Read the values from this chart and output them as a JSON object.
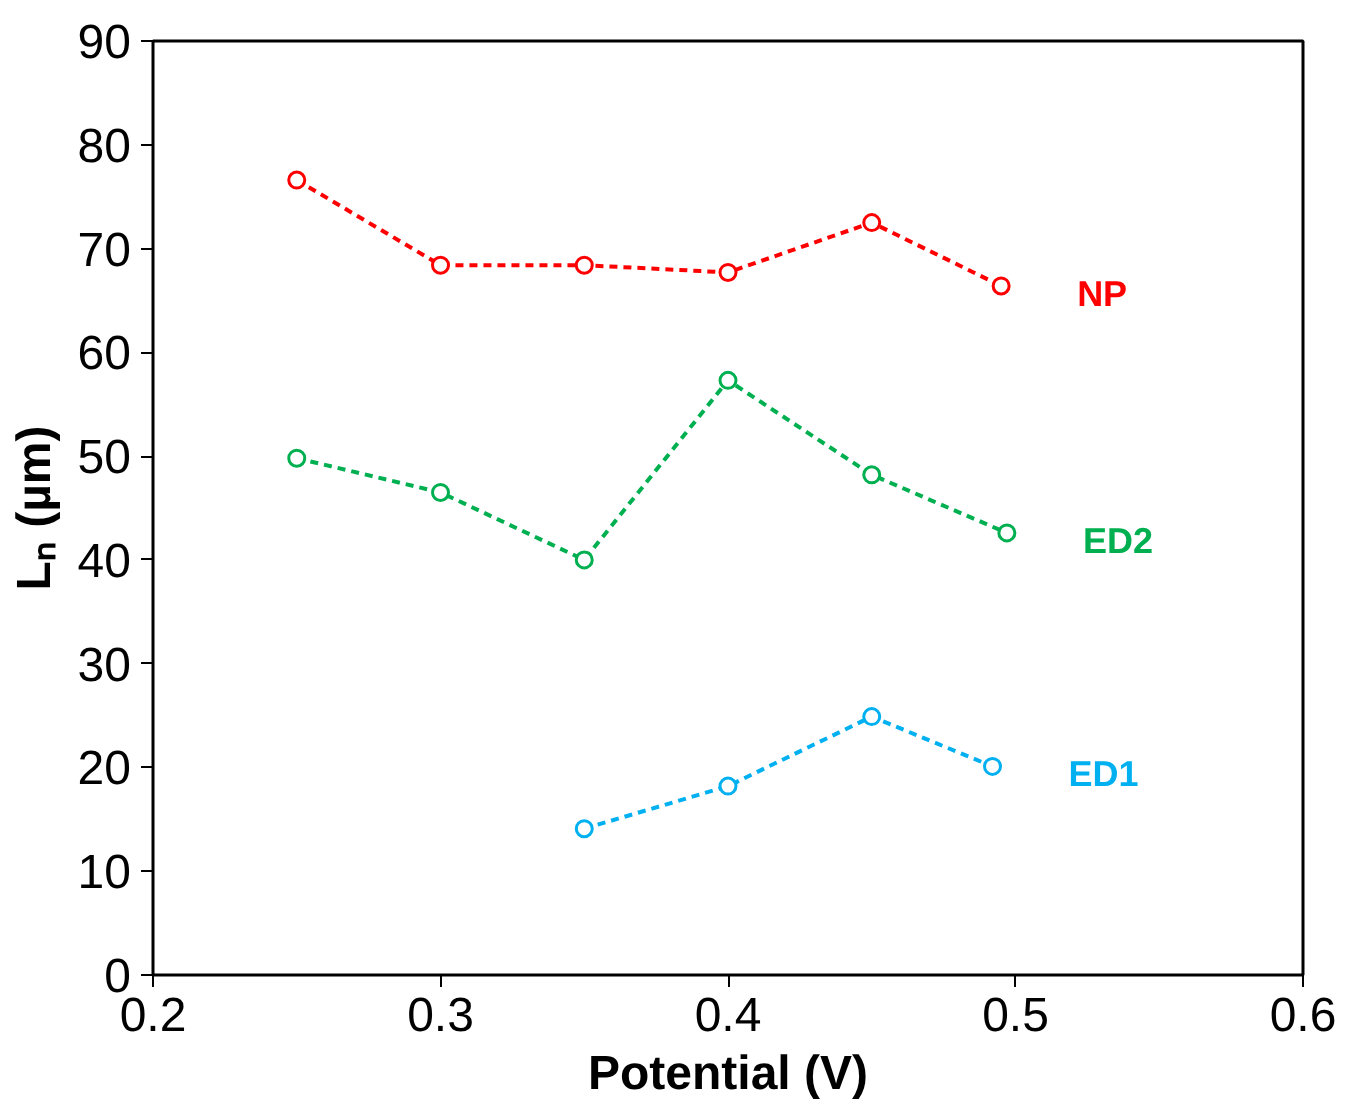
{
  "chart_data": {
    "type": "line",
    "xlabel": "Potential (V)",
    "ylabel": "Lₙ (µm)",
    "xlim": [
      0.2,
      0.6
    ],
    "xticks": [
      0.2,
      0.3,
      0.4,
      0.5,
      0.6
    ],
    "ylim": [
      0,
      90
    ],
    "yticks": [
      0,
      10,
      20,
      30,
      40,
      50,
      60,
      70,
      80,
      90
    ],
    "grid": false,
    "marker": "circle",
    "line_style": "dashed",
    "series": [
      {
        "name": "NP",
        "color": "#ff0000",
        "x": [
          0.25,
          0.3,
          0.35,
          0.4,
          0.45,
          0.495
        ],
        "values": [
          76.6,
          68.4,
          68.4,
          67.7,
          72.5,
          66.4
        ]
      },
      {
        "name": "ED2",
        "color": "#00b050",
        "x": [
          0.25,
          0.3,
          0.35,
          0.4,
          0.45,
          0.497
        ],
        "values": [
          49.8,
          46.5,
          40.0,
          57.3,
          48.2,
          42.6
        ]
      },
      {
        "name": "ED1",
        "color": "#00b0f0",
        "x": [
          0.35,
          0.4,
          0.45,
          0.492
        ],
        "values": [
          14.1,
          18.2,
          24.9,
          20.1
        ]
      }
    ]
  }
}
